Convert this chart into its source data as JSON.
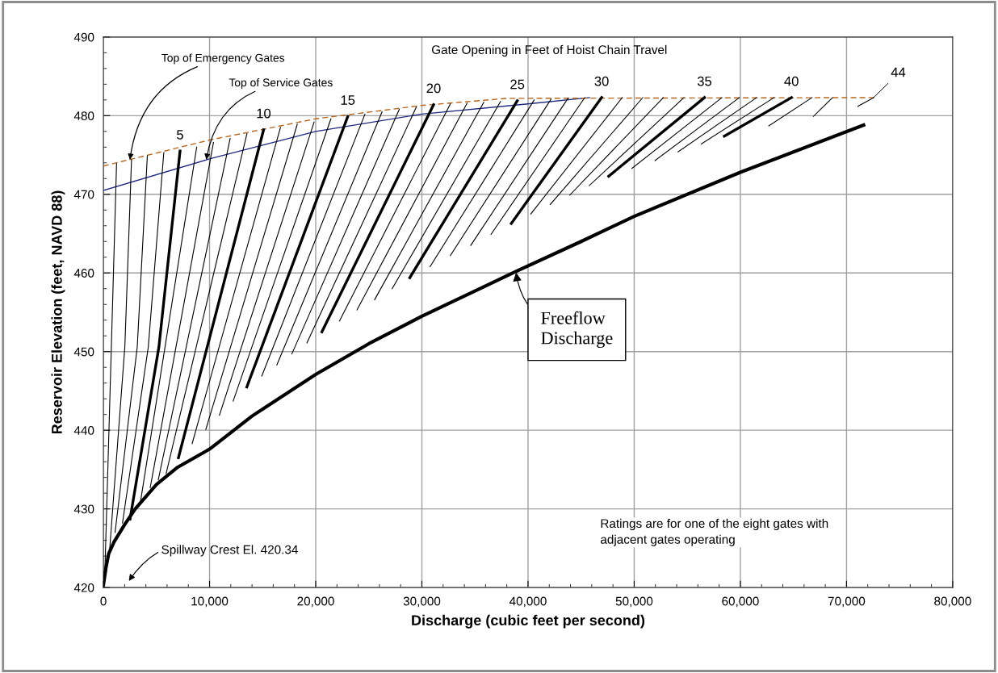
{
  "chart_data": {
    "type": "line",
    "xlabel": "Discharge (cubic feet per second)",
    "ylabel": "Reservoir Elevation (feet, NAVD 88)",
    "xlim": [
      0,
      80000
    ],
    "xticks": [
      0,
      {
        "value": 10000,
        "label": "10,000"
      },
      {
        "value": 20000,
        "label": "20,000"
      },
      {
        "value": 30000,
        "label": "30,000"
      },
      {
        "value": 40000,
        "label": "40,000"
      },
      {
        "value": 50000,
        "label": "50,000"
      },
      {
        "value": 60000,
        "label": "60,000"
      },
      {
        "value": 70000,
        "label": "70,000"
      },
      {
        "value": 80000,
        "label": "80,000"
      }
    ],
    "ylim": [
      420,
      490
    ],
    "yticks": [
      420,
      430,
      440,
      450,
      460,
      470,
      480,
      490
    ],
    "grid": true,
    "legend": false,
    "marker": "none",
    "series": [
      {
        "color": "#000000",
        "x": [
          0,
          250,
          500,
          1000,
          2000,
          3000,
          5000,
          7000,
          10000,
          14000,
          20000,
          25000,
          30000,
          35000,
          38860,
          45000,
          50000,
          60000,
          71610
        ],
        "values": [
          420.3,
          422.6,
          424.3,
          425.8,
          428,
          430,
          433.1,
          435.3,
          437.6,
          441.8,
          447.1,
          451,
          454.5,
          457.7,
          460.2,
          464,
          467.2,
          472.8,
          478.8
        ]
      },
      {
        "color": "#1f2a80",
        "x": [
          0,
          10000,
          20000,
          30000,
          40000,
          45780
        ],
        "values": [
          470.5,
          474.5,
          478,
          480.2,
          481.5,
          482.3
        ]
      },
      {
        "color": "#b5651d",
        "line_style": "dashed",
        "x": [
          0,
          10000,
          20000,
          30000,
          38000,
          72550
        ],
        "values": [
          473.6,
          476.9,
          479.6,
          481.3,
          482.2,
          482.3
        ]
      },
      {
        "color": "#000000",
        "x": [
          150,
          750,
          1240
        ],
        "values": [
          422.5,
          450.6,
          473.9
        ]
      },
      {
        "color": "#000000",
        "x": [
          600,
          2020,
          2650
        ],
        "values": [
          425,
          450.6,
          474.4
        ]
      },
      {
        "color": "#000000",
        "x": [
          1100,
          3190,
          4140
        ],
        "values": [
          427,
          450.6,
          474.9
        ]
      },
      {
        "color": "#000000",
        "x": [
          1800,
          4230,
          5690
        ],
        "values": [
          428.2,
          450.6,
          475.3
        ]
      },
      {
        "color": "#000000",
        "x": [
          2510,
          5230,
          7220
        ],
        "values": [
          428.7,
          450.6,
          475.5
        ]
      },
      {
        "color": "#000000",
        "x": [
          3470,
          8790
        ],
        "values": [
          430.7,
          476.0
        ]
      },
      {
        "color": "#000000",
        "x": [
          4410,
          10370
        ],
        "values": [
          432.7,
          476.6
        ]
      },
      {
        "color": "#000000",
        "x": [
          5170,
          11940
        ],
        "values": [
          433.7,
          477.1
        ]
      },
      {
        "color": "#000000",
        "x": [
          5910,
          13520
        ],
        "values": [
          434.5,
          477.7
        ]
      },
      {
        "color": "#000000",
        "x": [
          7070,
          15090
        ],
        "values": [
          436.5,
          478.2
        ]
      },
      {
        "color": "#000000",
        "x": [
          8360,
          16680
        ],
        "values": [
          438.3,
          478.5
        ]
      },
      {
        "color": "#000000",
        "x": [
          9650,
          18260
        ],
        "values": [
          440.1,
          478.9
        ]
      },
      {
        "color": "#000000",
        "x": [
          10930,
          19850
        ],
        "values": [
          441.9,
          479.2
        ]
      },
      {
        "color": "#000000",
        "x": [
          12220,
          21430
        ],
        "values": [
          443.7,
          479.6
        ]
      },
      {
        "color": "#000000",
        "x": [
          13510,
          23020
        ],
        "values": [
          445.5,
          479.9
        ]
      },
      {
        "color": "#000000",
        "x": [
          14920,
          24640
        ],
        "values": [
          446.9,
          480.2
        ]
      },
      {
        "color": "#000000",
        "x": [
          16340,
          26250
        ],
        "values": [
          448.3,
          480.5
        ]
      },
      {
        "color": "#000000",
        "x": [
          17750,
          27870
        ],
        "values": [
          449.7,
          480.8
        ]
      },
      {
        "color": "#000000",
        "x": [
          19170,
          29480
        ],
        "values": [
          451.1,
          481.1
        ]
      },
      {
        "color": "#000000",
        "x": [
          20580,
          31100
        ],
        "values": [
          452.5,
          481.4
        ]
      },
      {
        "color": "#000000",
        "x": [
          22240,
          32680
        ],
        "values": [
          453.9,
          481.5
        ]
      },
      {
        "color": "#000000",
        "x": [
          23890,
          34260
        ],
        "values": [
          455.3,
          481.6
        ]
      },
      {
        "color": "#000000",
        "x": [
          25550,
          35830
        ],
        "values": [
          456.6,
          481.7
        ]
      },
      {
        "color": "#000000",
        "x": [
          27200,
          37410
        ],
        "values": [
          458.0,
          481.8
        ]
      },
      {
        "color": "#000000",
        "x": [
          28860,
          38990
        ],
        "values": [
          459.4,
          481.9
        ]
      },
      {
        "color": "#000000",
        "x": [
          30770,
          40580
        ],
        "values": [
          460.8,
          482.0
        ]
      },
      {
        "color": "#000000",
        "x": [
          32680,
          42170
        ],
        "values": [
          462.2,
          482.1
        ]
      },
      {
        "color": "#000000",
        "x": [
          34600,
          43760
        ],
        "values": [
          463.5,
          482.2
        ]
      },
      {
        "color": "#000000",
        "x": [
          36510,
          45340
        ],
        "values": [
          464.9,
          482.3
        ]
      },
      {
        "color": "#000000",
        "x": [
          38420,
          46930
        ],
        "values": [
          466.3,
          482.3
        ]
      },
      {
        "color": "#000000",
        "x": [
          40260,
          48870
        ],
        "values": [
          467.5,
          482.3
        ]
      },
      {
        "color": "#000000",
        "x": [
          42090,
          50810
        ],
        "values": [
          468.7,
          482.3
        ]
      },
      {
        "color": "#000000",
        "x": [
          43930,
          52740
        ],
        "values": [
          469.9,
          482.3
        ]
      },
      {
        "color": "#000000",
        "x": [
          45760,
          54680
        ],
        "values": [
          471.1,
          482.3
        ]
      },
      {
        "color": "#000000",
        "x": [
          47600,
          56620
        ],
        "values": [
          472.3,
          482.3
        ]
      },
      {
        "color": "#000000",
        "x": [
          49780,
          58260
        ],
        "values": [
          473.3,
          482.3
        ]
      },
      {
        "color": "#000000",
        "x": [
          51960,
          59900
        ],
        "values": [
          474.3,
          482.3
        ]
      },
      {
        "color": "#000000",
        "x": [
          54130,
          61530
        ],
        "values": [
          475.4,
          482.3
        ]
      },
      {
        "color": "#000000",
        "x": [
          56310,
          63170
        ],
        "values": [
          476.4,
          482.3
        ]
      },
      {
        "color": "#000000",
        "x": [
          58490,
          64810
        ],
        "values": [
          477.4,
          482.3
        ]
      },
      {
        "color": "#000000",
        "x": [
          62680,
          66750
        ],
        "values": [
          478.7,
          482.3
        ]
      },
      {
        "color": "#000000",
        "x": [
          66880,
          68680
        ],
        "values": [
          479.9,
          482.3
        ]
      },
      {
        "color": "#000000",
        "x": [
          71070,
          72550
        ],
        "values": [
          481.2,
          482.3
        ]
      }
    ],
    "annotations": [
      {
        "text": "5",
        "x": 7220,
        "y": 475.5
      },
      {
        "text": "10",
        "x": 15090,
        "y": 478.2
      },
      {
        "text": "15",
        "x": 23020,
        "y": 479.9
      },
      {
        "text": "20",
        "x": 31100,
        "y": 481.4
      },
      {
        "text": "25",
        "x": 38990,
        "y": 481.9
      },
      {
        "text": "30",
        "x": 46930,
        "y": 482.3
      },
      {
        "text": "35",
        "x": 56620,
        "y": 482.3
      },
      {
        "text": "40",
        "x": 64810,
        "y": 482.3
      },
      {
        "text": "44",
        "x": 72550,
        "y": 482.3
      },
      {
        "text": "Top of Emergency Gates",
        "x": 2500,
        "y": 474.4
      },
      {
        "text": "Top of Service Gates",
        "x": 9700,
        "y": 474.4
      },
      {
        "text": "Freeflow\nDischarge",
        "x": 38860,
        "y": 460.2
      },
      "Spillway Crest El. 420.34",
      "Gate Opening in Feet of Hoist Chain Travel",
      "Ratings are for one of the eight gates with\nadjacent gates operating"
    ]
  }
}
